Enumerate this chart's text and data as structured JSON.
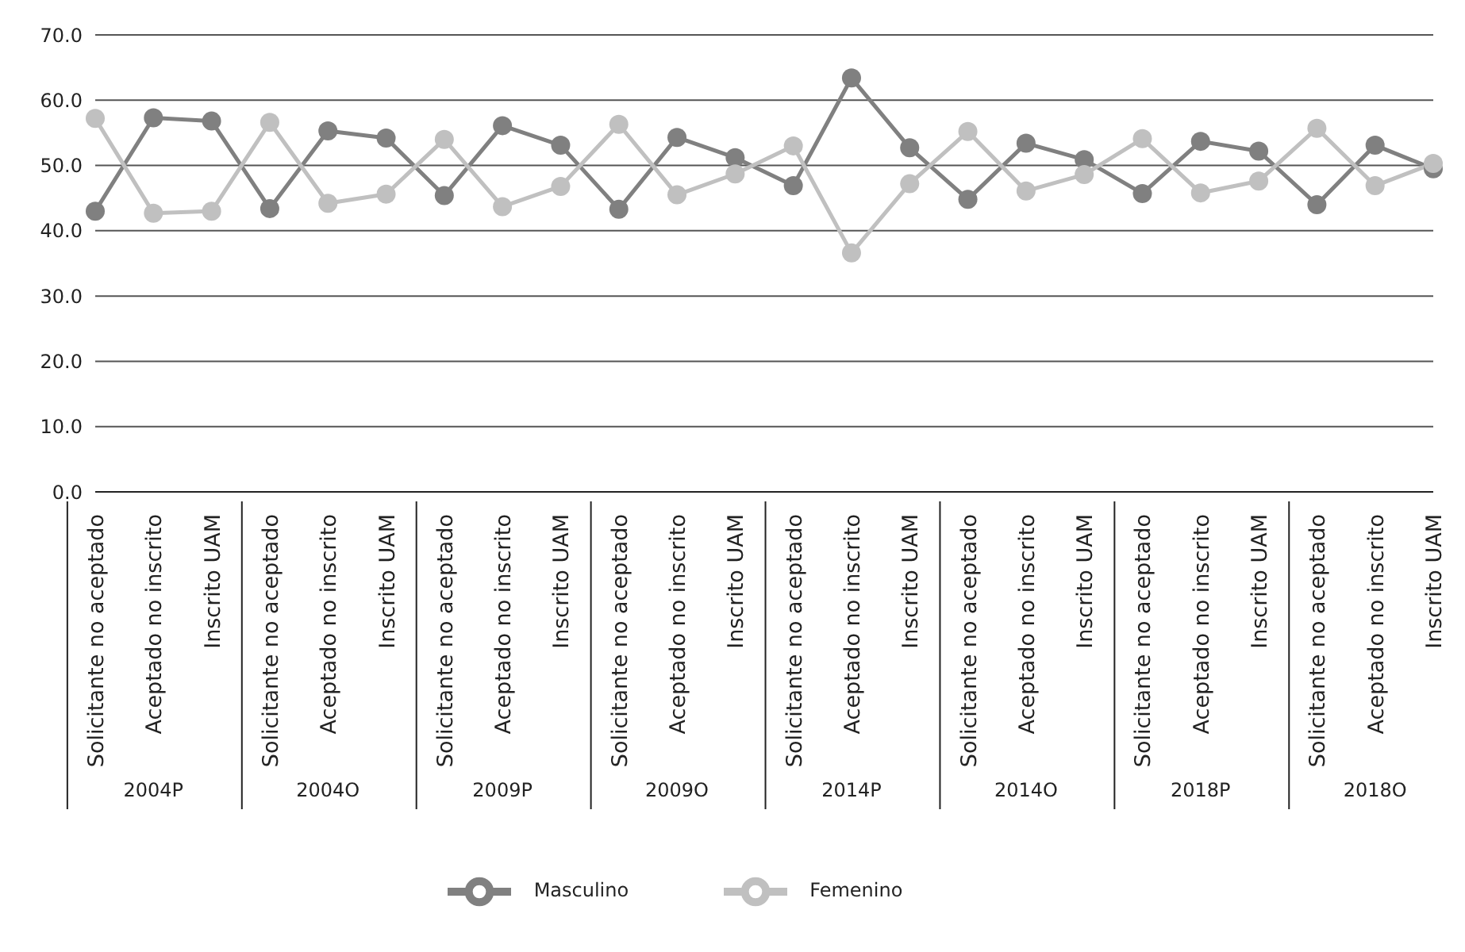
{
  "chart_data": {
    "type": "line",
    "categories": [
      "Solicitante no aceptado",
      "Aceptado no inscrito",
      "Inscrito UAM",
      "Solicitante no aceptado",
      "Aceptado no inscrito",
      "Inscrito UAM",
      "Solicitante no aceptado",
      "Aceptado no inscrito",
      "Inscrito UAM",
      "Solicitante no aceptado",
      "Aceptado no inscrito",
      "Inscrito UAM",
      "Solicitante no aceptado",
      "Aceptado no inscrito",
      "Inscrito UAM",
      "Solicitante no aceptado",
      "Aceptado no inscrito",
      "Inscrito UAM",
      "Solicitante no aceptado",
      "Aceptado no inscrito",
      "Inscrito UAM",
      "Solicitante no aceptado",
      "Aceptado no inscrito",
      "Inscrito UAM"
    ],
    "annotations": [
      "2004P",
      "2004O",
      "2009P",
      "2009O",
      "2014P",
      "2014O",
      "2018P",
      "2018O"
    ],
    "series": [
      {
        "name": "Masculino",
        "color": "#808080",
        "values": [
          43.0,
          57.3,
          56.8,
          43.4,
          55.3,
          54.2,
          45.4,
          56.1,
          53.1,
          43.3,
          54.3,
          51.2,
          46.9,
          63.4,
          52.7,
          44.8,
          53.4,
          50.9,
          45.7,
          53.7,
          52.2,
          44.0,
          53.1,
          49.5
        ]
      },
      {
        "name": "Femenino",
        "color": "#c0c0c0",
        "values": [
          57.2,
          42.7,
          43.0,
          56.6,
          44.2,
          45.6,
          54.0,
          43.7,
          46.8,
          56.3,
          45.5,
          48.7,
          53.0,
          36.6,
          47.2,
          55.2,
          46.1,
          48.6,
          54.1,
          45.8,
          47.6,
          55.7,
          46.9,
          50.3
        ]
      }
    ],
    "ylim": [
      0,
      70
    ],
    "yticks": [
      {
        "value": 0,
        "label": "0.0"
      },
      {
        "value": 10,
        "label": "10.0"
      },
      {
        "value": 20,
        "label": "20.0"
      },
      {
        "value": 30,
        "label": "30.0"
      },
      {
        "value": 40,
        "label": "40.0"
      },
      {
        "value": 50,
        "label": "50.0"
      },
      {
        "value": 60,
        "label": "60.0"
      },
      {
        "value": 70,
        "label": "70.0"
      }
    ],
    "grid": "y",
    "legend": "bottom",
    "marker": "circle",
    "line_style": "solid"
  }
}
